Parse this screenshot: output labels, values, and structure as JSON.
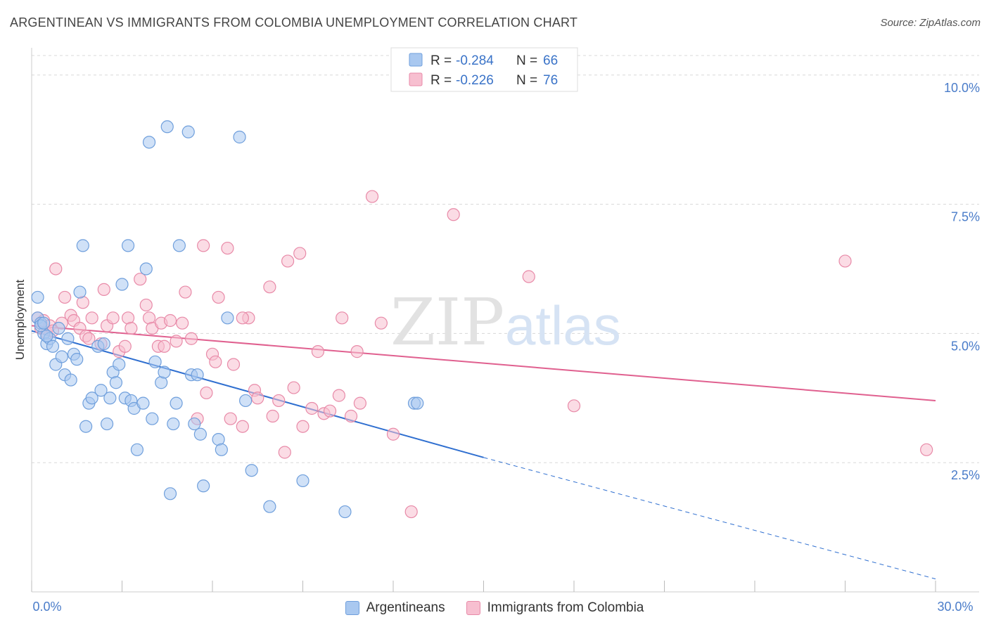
{
  "title": "ARGENTINEAN VS IMMIGRANTS FROM COLOMBIA UNEMPLOYMENT CORRELATION CHART",
  "source": "Source: ZipAtlas.com",
  "watermark": {
    "zip": "ZIP",
    "atlas": "atlas"
  },
  "colors": {
    "blue_fill": "#a9c8f0",
    "blue_stroke": "#6f9fdc",
    "blue_line": "#2f6fd0",
    "pink_fill": "#f7bfd0",
    "pink_stroke": "#e88aa8",
    "pink_line": "#e0608f",
    "tick_color": "#4a7cc9",
    "grid": "#d8d8d8"
  },
  "legend": {
    "rows": [
      {
        "r_label": "R =",
        "r_value": "-0.284",
        "n_label": "N =",
        "n_value": "66"
      },
      {
        "r_label": "R =",
        "r_value": "-0.226",
        "n_label": "N =",
        "n_value": "76"
      }
    ]
  },
  "chart_data": {
    "type": "scatter",
    "title": "ARGENTINEAN VS IMMIGRANTS FROM COLOMBIA UNEMPLOYMENT CORRELATION CHART",
    "xlabel": "",
    "ylabel": "Unemployment",
    "xlim": [
      0,
      30
    ],
    "ylim": [
      0,
      10.5
    ],
    "x_tick_labels": [
      "0.0%",
      "30.0%"
    ],
    "y_ticks": [
      2.5,
      5.0,
      7.5,
      10.0
    ],
    "y_tick_labels": [
      "2.5%",
      "5.0%",
      "7.5%",
      "10.0%"
    ],
    "grid": true,
    "legend_position": "top-center",
    "series": [
      {
        "name": "Argentineans",
        "color": "#a9c8f0",
        "trend": {
          "x": [
            0,
            15
          ],
          "y": [
            5.05,
            2.6
          ],
          "dashed_to": [
            30,
            0.25
          ]
        },
        "points": [
          [
            0.2,
            5.7
          ],
          [
            0.2,
            5.3
          ],
          [
            0.3,
            5.2
          ],
          [
            0.4,
            5.0
          ],
          [
            0.5,
            4.8
          ],
          [
            0.6,
            4.9
          ],
          [
            0.7,
            4.75
          ],
          [
            0.8,
            4.4
          ],
          [
            0.9,
            5.1
          ],
          [
            1.0,
            4.55
          ],
          [
            1.1,
            4.2
          ],
          [
            1.2,
            4.9
          ],
          [
            1.3,
            4.1
          ],
          [
            1.4,
            4.6
          ],
          [
            1.5,
            4.5
          ],
          [
            1.6,
            5.8
          ],
          [
            1.7,
            6.7
          ],
          [
            1.8,
            3.2
          ],
          [
            1.9,
            3.65
          ],
          [
            2.0,
            3.75
          ],
          [
            2.2,
            4.75
          ],
          [
            2.3,
            3.9
          ],
          [
            2.4,
            4.8
          ],
          [
            2.5,
            3.25
          ],
          [
            2.6,
            3.75
          ],
          [
            2.7,
            4.25
          ],
          [
            2.8,
            4.05
          ],
          [
            2.9,
            4.4
          ],
          [
            3.0,
            5.95
          ],
          [
            3.1,
            3.75
          ],
          [
            3.2,
            6.7
          ],
          [
            3.3,
            3.7
          ],
          [
            3.4,
            3.55
          ],
          [
            3.5,
            2.75
          ],
          [
            3.7,
            3.65
          ],
          [
            3.8,
            6.25
          ],
          [
            3.9,
            8.7
          ],
          [
            4.0,
            3.35
          ],
          [
            4.1,
            4.45
          ],
          [
            4.3,
            4.05
          ],
          [
            4.4,
            4.25
          ],
          [
            4.5,
            9.0
          ],
          [
            4.6,
            1.9
          ],
          [
            4.7,
            3.25
          ],
          [
            4.8,
            3.65
          ],
          [
            4.9,
            6.7
          ],
          [
            5.2,
            8.9
          ],
          [
            5.3,
            4.2
          ],
          [
            5.4,
            3.25
          ],
          [
            5.5,
            4.2
          ],
          [
            5.6,
            3.05
          ],
          [
            5.7,
            2.05
          ],
          [
            6.2,
            2.95
          ],
          [
            6.3,
            2.75
          ],
          [
            6.5,
            5.3
          ],
          [
            6.9,
            8.8
          ],
          [
            7.1,
            3.7
          ],
          [
            7.3,
            2.35
          ],
          [
            7.9,
            1.65
          ],
          [
            9.0,
            2.15
          ],
          [
            10.4,
            1.55
          ],
          [
            12.7,
            3.65
          ],
          [
            12.8,
            3.65
          ],
          [
            0.3,
            5.15
          ],
          [
            0.5,
            4.95
          ],
          [
            0.4,
            5.2
          ]
        ]
      },
      {
        "name": "Immigrants from Colombia",
        "color": "#f7bfd0",
        "trend": {
          "x": [
            0,
            30
          ],
          "y": [
            5.15,
            3.7
          ]
        },
        "points": [
          [
            0.2,
            5.3
          ],
          [
            0.3,
            5.1
          ],
          [
            0.4,
            5.25
          ],
          [
            0.5,
            5.0
          ],
          [
            0.6,
            5.15
          ],
          [
            0.8,
            6.25
          ],
          [
            1.0,
            5.2
          ],
          [
            1.1,
            5.7
          ],
          [
            1.3,
            5.35
          ],
          [
            1.4,
            5.25
          ],
          [
            1.6,
            5.1
          ],
          [
            1.7,
            5.6
          ],
          [
            1.8,
            4.95
          ],
          [
            1.9,
            4.9
          ],
          [
            2.0,
            5.3
          ],
          [
            2.3,
            4.8
          ],
          [
            2.4,
            5.85
          ],
          [
            2.5,
            5.15
          ],
          [
            2.7,
            5.3
          ],
          [
            2.9,
            4.65
          ],
          [
            3.1,
            4.75
          ],
          [
            3.2,
            5.3
          ],
          [
            3.3,
            5.1
          ],
          [
            3.6,
            6.05
          ],
          [
            3.8,
            5.55
          ],
          [
            3.9,
            5.3
          ],
          [
            4.0,
            5.1
          ],
          [
            4.2,
            4.75
          ],
          [
            4.3,
            5.2
          ],
          [
            4.4,
            4.75
          ],
          [
            4.6,
            5.25
          ],
          [
            4.8,
            4.85
          ],
          [
            5.0,
            5.2
          ],
          [
            5.1,
            5.8
          ],
          [
            5.3,
            4.9
          ],
          [
            5.5,
            3.35
          ],
          [
            5.7,
            6.7
          ],
          [
            5.8,
            3.85
          ],
          [
            6.0,
            4.6
          ],
          [
            6.1,
            4.45
          ],
          [
            6.2,
            5.7
          ],
          [
            6.5,
            6.65
          ],
          [
            6.6,
            3.35
          ],
          [
            6.7,
            4.4
          ],
          [
            7.0,
            3.2
          ],
          [
            7.2,
            5.3
          ],
          [
            7.4,
            3.9
          ],
          [
            7.5,
            3.75
          ],
          [
            7.9,
            5.9
          ],
          [
            8.0,
            3.4
          ],
          [
            8.2,
            3.7
          ],
          [
            8.4,
            2.7
          ],
          [
            8.5,
            6.4
          ],
          [
            8.7,
            3.95
          ],
          [
            8.9,
            6.55
          ],
          [
            9.0,
            3.2
          ],
          [
            9.3,
            3.55
          ],
          [
            9.5,
            4.65
          ],
          [
            9.7,
            3.45
          ],
          [
            9.9,
            3.5
          ],
          [
            10.2,
            3.8
          ],
          [
            10.3,
            5.3
          ],
          [
            10.6,
            3.4
          ],
          [
            10.8,
            4.65
          ],
          [
            10.9,
            3.65
          ],
          [
            11.3,
            7.65
          ],
          [
            11.6,
            5.2
          ],
          [
            12.0,
            3.05
          ],
          [
            12.6,
            1.55
          ],
          [
            14.0,
            7.3
          ],
          [
            16.5,
            6.1
          ],
          [
            18.0,
            3.6
          ],
          [
            27.0,
            6.4
          ],
          [
            29.7,
            2.75
          ],
          [
            7.0,
            5.3
          ],
          [
            0.7,
            5.05
          ]
        ]
      }
    ]
  },
  "bottom_legend": [
    {
      "label": "Argentineans"
    },
    {
      "label": "Immigrants from Colombia"
    }
  ]
}
